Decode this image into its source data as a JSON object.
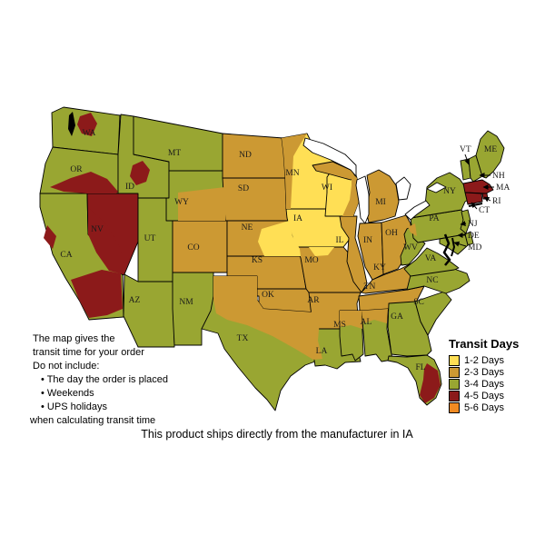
{
  "page": {
    "background": "#FFFFFF"
  },
  "map": {
    "origin_state": "IA",
    "states": [
      {
        "id": "WA",
        "label": "WA",
        "zone": "3-4"
      },
      {
        "id": "OR",
        "label": "OR",
        "zone": "3-4"
      },
      {
        "id": "CA",
        "label": "CA",
        "zone": "3-4"
      },
      {
        "id": "NV",
        "label": "NV",
        "zone": "4-5"
      },
      {
        "id": "ID",
        "label": "ID",
        "zone": "3-4"
      },
      {
        "id": "MT",
        "label": "MT",
        "zone": "3-4"
      },
      {
        "id": "WY",
        "label": "WY",
        "zone": "3-4"
      },
      {
        "id": "UT",
        "label": "UT",
        "zone": "3-4"
      },
      {
        "id": "AZ",
        "label": "AZ",
        "zone": "3-4"
      },
      {
        "id": "NM",
        "label": "NM",
        "zone": "3-4"
      },
      {
        "id": "CO",
        "label": "CO",
        "zone": "2-3"
      },
      {
        "id": "ND",
        "label": "ND",
        "zone": "2-3"
      },
      {
        "id": "SD",
        "label": "SD",
        "zone": "2-3"
      },
      {
        "id": "NE",
        "label": "NE",
        "zone": "2-3"
      },
      {
        "id": "KS",
        "label": "KS",
        "zone": "2-3"
      },
      {
        "id": "OK",
        "label": "OK",
        "zone": "2-3"
      },
      {
        "id": "TX",
        "label": "TX",
        "zone": "3-4"
      },
      {
        "id": "MN",
        "label": "MN",
        "zone": "1-2"
      },
      {
        "id": "IA",
        "label": "IA",
        "zone": "1-2"
      },
      {
        "id": "MO",
        "label": "MO",
        "zone": "2-3"
      },
      {
        "id": "AR",
        "label": "AR",
        "zone": "2-3"
      },
      {
        "id": "LA",
        "label": "LA",
        "zone": "3-4"
      },
      {
        "id": "WI",
        "label": "WI",
        "zone": "1-2"
      },
      {
        "id": "IL",
        "label": "IL",
        "zone": "2-3"
      },
      {
        "id": "MIUP",
        "label": "",
        "zone": "2-3"
      },
      {
        "id": "MI",
        "label": "MI",
        "zone": "2-3"
      },
      {
        "id": "IN",
        "label": "IN",
        "zone": "2-3"
      },
      {
        "id": "OH",
        "label": "OH",
        "zone": "2-3"
      },
      {
        "id": "KY",
        "label": "KY",
        "zone": "2-3"
      },
      {
        "id": "TN",
        "label": "TN",
        "zone": "2-3"
      },
      {
        "id": "MS",
        "label": "MS",
        "zone": "3-4"
      },
      {
        "id": "AL",
        "label": "AL",
        "zone": "3-4"
      },
      {
        "id": "GA",
        "label": "GA",
        "zone": "3-4"
      },
      {
        "id": "SC",
        "label": "SC",
        "zone": "3-4"
      },
      {
        "id": "NC",
        "label": "NC",
        "zone": "3-4"
      },
      {
        "id": "VA",
        "label": "VA",
        "zone": "3-4"
      },
      {
        "id": "WV",
        "label": "WV",
        "zone": "3-4"
      },
      {
        "id": "PA",
        "label": "PA",
        "zone": "3-4"
      },
      {
        "id": "NY",
        "label": "NY",
        "zone": "3-4"
      },
      {
        "id": "FL",
        "label": "FL",
        "zone": "3-4"
      },
      {
        "id": "VT",
        "label": "VT",
        "zone": "3-4"
      },
      {
        "id": "NH",
        "label": "NH",
        "zone": "3-4"
      },
      {
        "id": "ME",
        "label": "ME",
        "zone": "3-4"
      },
      {
        "id": "MA",
        "label": "MA",
        "zone": "4-5"
      },
      {
        "id": "RI",
        "label": "RI",
        "zone": "4-5"
      },
      {
        "id": "CT",
        "label": "CT",
        "zone": "4-5"
      },
      {
        "id": "NJ",
        "label": "NJ",
        "zone": "3-4"
      },
      {
        "id": "DE",
        "label": "DE",
        "zone": "3-4"
      },
      {
        "id": "MD",
        "label": "MD",
        "zone": "3-4"
      }
    ]
  },
  "legend": {
    "title": "Transit Days",
    "items": [
      {
        "label": "1-2 Days",
        "zone": "1-2",
        "color": "#FFDF55"
      },
      {
        "label": "2-3 Days",
        "zone": "2-3",
        "color": "#CC9933"
      },
      {
        "label": "3-4 Days",
        "zone": "3-4",
        "color": "#99A632"
      },
      {
        "label": "4-5 Days",
        "zone": "4-5",
        "color": "#8C1A1A"
      },
      {
        "label": "5-6 Days",
        "zone": "5-6",
        "color": "#F08A22"
      }
    ]
  },
  "notes": {
    "lines": [
      "The map gives the",
      "transit time for your order",
      "Do not include:",
      "• The day the order is placed",
      "• Weekends",
      "• UPS holidays",
      "when calculating transit time"
    ]
  },
  "footer": {
    "text": "This product ships directly from the manufacturer in IA"
  }
}
